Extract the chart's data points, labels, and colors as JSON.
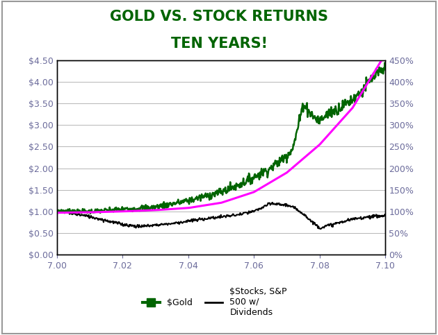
{
  "title_line1": "GOLD VS. STOCK RETURNS",
  "title_line2": "TEN YEARS!",
  "title_color": "#006400",
  "title_fontsize": 15,
  "x_min": 7.0,
  "x_max": 7.1,
  "y_left_min": 0.0,
  "y_left_max": 4.5,
  "y_right_min": 0,
  "y_right_max": 450,
  "x_ticks": [
    7.0,
    7.02,
    7.04,
    7.06,
    7.08,
    7.1
  ],
  "y_left_ticks": [
    0.0,
    0.5,
    1.0,
    1.5,
    2.0,
    2.5,
    3.0,
    3.5,
    4.0,
    4.5
  ],
  "y_right_ticks": [
    0,
    50,
    100,
    150,
    200,
    250,
    300,
    350,
    400,
    450
  ],
  "gold_color": "#006400",
  "stocks_color": "#000000",
  "exp_color": "#FF00FF",
  "background_color": "#FFFFFF",
  "plot_bg_color": "#FFFFFF",
  "legend_gold": "$Gold",
  "legend_stocks": "$Stocks, S&P\n500 w/\nDividends",
  "tick_color": "#6B6B9B",
  "tick_fontsize": 9,
  "grid_color": "#AAAAAA",
  "border_color": "#000000",
  "figure_border_color": "#999999"
}
